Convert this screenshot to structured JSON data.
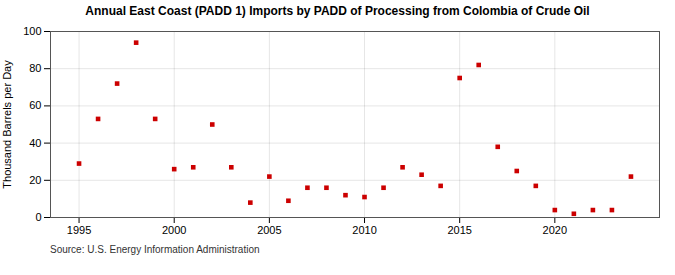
{
  "chart_data": {
    "type": "scatter",
    "title": "Annual East Coast (PADD 1) Imports by PADD of Processing from Colombia of Crude Oil",
    "ylabel": "Thousand Barrels per Day",
    "annotations": [
      "Source: U.S. Energy Information Administration"
    ],
    "x": [
      1995,
      1996,
      1997,
      1998,
      1999,
      2000,
      2001,
      2002,
      2003,
      2004,
      2005,
      2006,
      2007,
      2008,
      2009,
      2010,
      2011,
      2012,
      2013,
      2014,
      2015,
      2016,
      2017,
      2018,
      2019,
      2020,
      2021,
      2022,
      2023,
      2024
    ],
    "values": [
      29,
      53,
      72,
      94,
      53,
      26,
      27,
      50,
      27,
      8,
      22,
      9,
      16,
      16,
      12,
      11,
      16,
      27,
      23,
      17,
      75,
      82,
      38,
      25,
      17,
      4,
      2,
      4,
      4,
      22
    ],
    "color": "#cc0000",
    "marker": "square",
    "xlim": [
      1993.5,
      2025.5
    ],
    "ylim": [
      0,
      100
    ],
    "xticks": [
      1995,
      2000,
      2005,
      2010,
      2015,
      2020
    ],
    "yticks": [
      0,
      20,
      40,
      60,
      80,
      100
    ],
    "grid": true
  }
}
